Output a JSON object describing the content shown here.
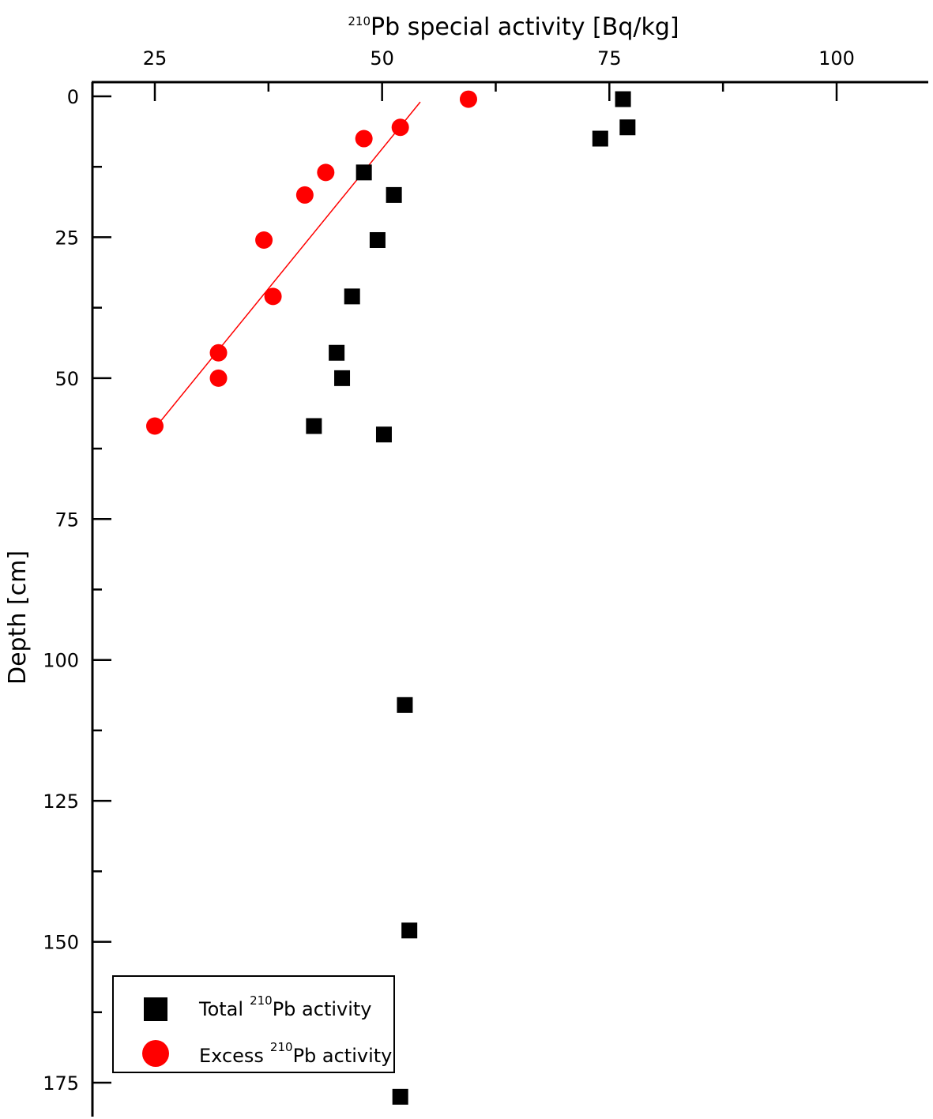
{
  "chart_data": {
    "type": "scatter",
    "x_axis": {
      "label_sup": "210",
      "label": "Pb special activity [Bq/kg]",
      "position": "top",
      "range": [
        25,
        100
      ],
      "ticks": [
        25,
        50,
        75,
        100
      ],
      "tick_labels": [
        "25",
        "50",
        "75",
        "100"
      ]
    },
    "y_axis": {
      "label": "Depth [cm]",
      "inverted": true,
      "range": [
        0,
        175
      ],
      "ticks": [
        0,
        25,
        50,
        75,
        100,
        125,
        150,
        175
      ],
      "tick_labels": [
        "0",
        "25",
        "50",
        "75",
        "100",
        "125",
        "150",
        "175"
      ]
    },
    "series": [
      {
        "name": "Total",
        "name_sup": "210",
        "name_suffix": "Pb activity",
        "marker": "square",
        "color": "#000000",
        "points": [
          {
            "x": 76.5,
            "y": 0.5
          },
          {
            "x": 77.0,
            "y": 5.5
          },
          {
            "x": 74.0,
            "y": 7.5
          },
          {
            "x": 48.0,
            "y": 13.5
          },
          {
            "x": 51.3,
            "y": 17.5
          },
          {
            "x": 49.5,
            "y": 25.5
          },
          {
            "x": 46.7,
            "y": 35.5
          },
          {
            "x": 45.0,
            "y": 45.5
          },
          {
            "x": 45.6,
            "y": 50.0
          },
          {
            "x": 42.5,
            "y": 58.5
          },
          {
            "x": 50.2,
            "y": 60.0
          },
          {
            "x": 52.5,
            "y": 108.0
          },
          {
            "x": 53.0,
            "y": 148.0
          },
          {
            "x": 52.0,
            "y": 177.5
          }
        ]
      },
      {
        "name": "Excess",
        "name_sup": "210",
        "name_suffix": "Pb activity",
        "marker": "circle",
        "color": "#ff0000",
        "points": [
          {
            "x": 59.5,
            "y": 0.5
          },
          {
            "x": 52.0,
            "y": 5.5
          },
          {
            "x": 48.0,
            "y": 7.5
          },
          {
            "x": 43.8,
            "y": 13.5
          },
          {
            "x": 41.5,
            "y": 17.5
          },
          {
            "x": 37.0,
            "y": 25.5
          },
          {
            "x": 38.0,
            "y": 35.5
          },
          {
            "x": 32.0,
            "y": 45.5
          },
          {
            "x": 32.0,
            "y": 50.0
          },
          {
            "x": 25.0,
            "y": 58.5
          }
        ]
      }
    ],
    "fit_line": {
      "color": "#ff0000",
      "from": {
        "x": 25.7,
        "y": 57.5
      },
      "to": {
        "x": 54.2,
        "y": 1.0
      }
    },
    "legend": {
      "placement": "bottom-left"
    },
    "grid": false
  }
}
